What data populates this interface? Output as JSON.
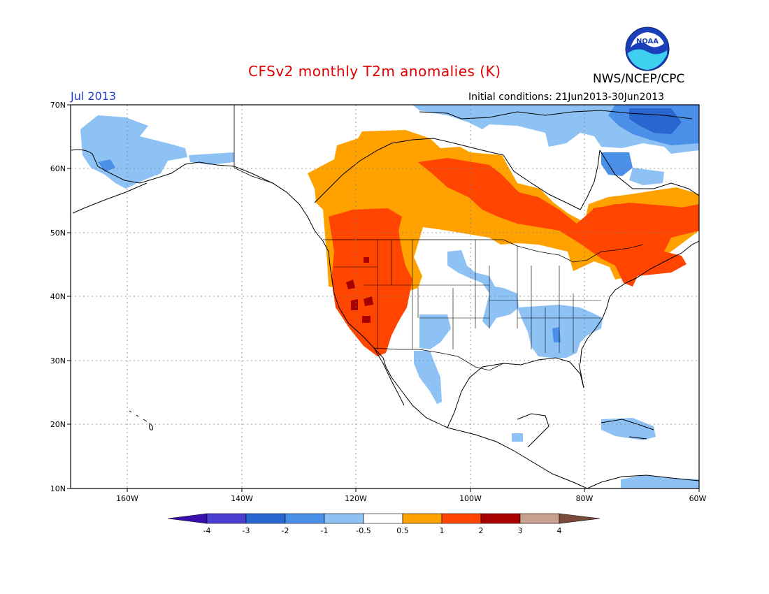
{
  "title": "CFSv2 monthly T2m anomalies (K)",
  "agency": "NWS/NCEP/CPC",
  "logo_text": "NOAA",
  "valid_month": "Jul 2013",
  "initial_conditions": "Initial conditions: 21Jun2013-30Jun2013",
  "lat_labels": [
    "70N",
    "60N",
    "50N",
    "40N",
    "30N",
    "20N",
    "10N"
  ],
  "lon_labels": [
    "160W",
    "140W",
    "120W",
    "100W",
    "80W",
    "60W"
  ],
  "colorbar": {
    "labels": [
      "-4",
      "-3",
      "-2",
      "-1",
      "-0.5",
      "0.5",
      "1",
      "2",
      "3",
      "4"
    ],
    "colors": [
      "#3a0fb0",
      "#4a3fd0",
      "#2a66d0",
      "#4a90e8",
      "#8ec2f5",
      "#ffffff",
      "#ffa200",
      "#ff4500",
      "#a80000",
      "#c8a090",
      "#7a4a3a"
    ]
  },
  "colors": {
    "title": "#e00000",
    "month": "#1f3fd6"
  }
}
